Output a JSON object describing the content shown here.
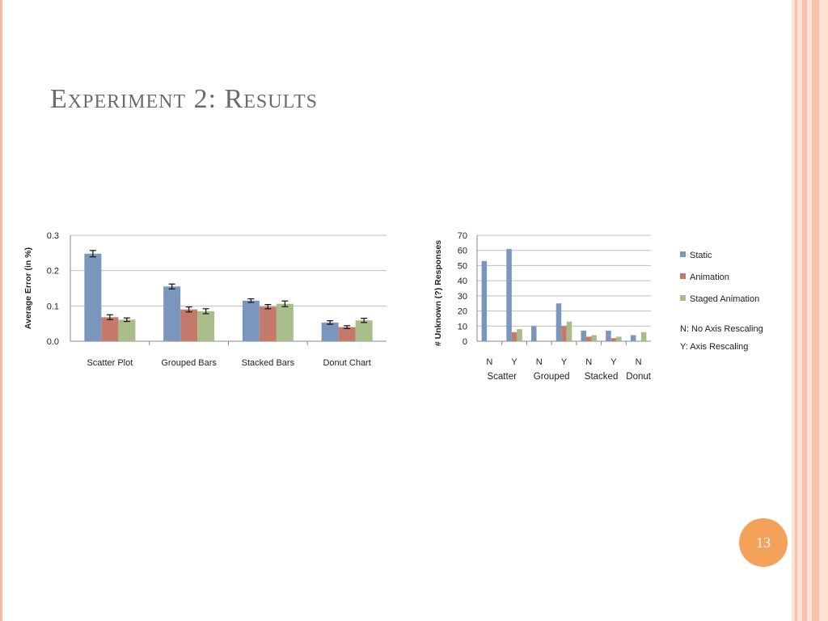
{
  "slide": {
    "title": "Experiment 2: Results",
    "page_number": "13",
    "colors": {
      "accent": "#f4a15a",
      "border": "#f2b9a3",
      "stripe_light": "#fce3d6",
      "stripe_mid": "#f7c3ad"
    }
  },
  "chart_data": [
    {
      "type": "bar",
      "title": "",
      "xlabel": "",
      "ylabel": "Average Error  (in %)",
      "ylim": [
        0,
        0.3
      ],
      "yticks": [
        "0.0",
        "0.1",
        "0.2",
        "0.3"
      ],
      "categories": [
        "Scatter Plot",
        "Grouped Bars",
        "Stacked Bars",
        "Donut Chart"
      ],
      "series": [
        {
          "values": [
            0.248,
            0.155,
            0.115,
            0.053
          ],
          "errors": [
            0.009,
            0.007,
            0.005,
            0.005
          ],
          "color": "#7a96bd"
        },
        {
          "values": [
            0.068,
            0.09,
            0.098,
            0.04
          ],
          "errors": [
            0.007,
            0.007,
            0.006,
            0.004
          ],
          "color": "#c47a6a"
        },
        {
          "values": [
            0.061,
            0.085,
            0.106,
            0.059
          ],
          "errors": [
            0.005,
            0.007,
            0.008,
            0.006
          ],
          "color": "#a9bd8b"
        }
      ],
      "grid": true,
      "legend": "none"
    },
    {
      "type": "bar",
      "title": "",
      "xlabel": "",
      "ylabel": "# Unknown (?) Responses",
      "ylim": [
        0,
        70
      ],
      "yticks": [
        "0",
        "10",
        "20",
        "30",
        "40",
        "50",
        "60",
        "70"
      ],
      "categories": [
        "N",
        "Y",
        "N",
        "Y",
        "N",
        "Y",
        "N"
      ],
      "groups": [
        {
          "label": "Scatter",
          "span": [
            0,
            1
          ]
        },
        {
          "label": "Grouped",
          "span": [
            2,
            3
          ]
        },
        {
          "label": "Stacked",
          "span": [
            4,
            5
          ]
        },
        {
          "label": "Donut",
          "span": [
            6,
            6
          ]
        }
      ],
      "series": [
        {
          "name": "Static",
          "values": [
            53,
            61,
            10,
            25,
            7,
            7,
            4
          ],
          "color": "#7a96bd"
        },
        {
          "name": "Animation",
          "values": [
            0,
            6,
            0,
            10,
            3,
            2,
            0
          ],
          "color": "#c47a6a"
        },
        {
          "name": "Staged Animation",
          "values": [
            0,
            8,
            0,
            13,
            4,
            3,
            6
          ],
          "color": "#a9bd8b"
        }
      ],
      "notes": [
        "N: No Axis Rescaling",
        "Y: Axis Rescaling"
      ],
      "grid": true,
      "legend": "right"
    }
  ]
}
